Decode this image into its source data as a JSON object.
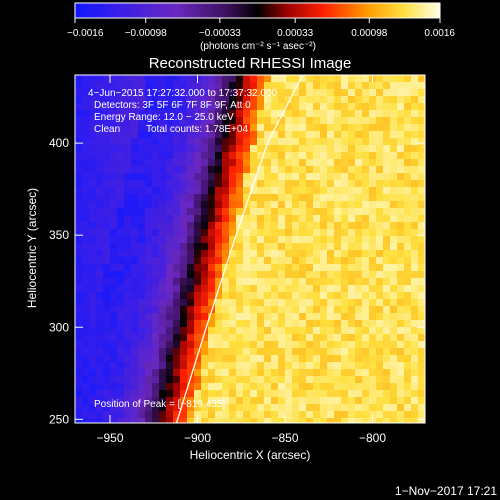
{
  "chart_data": {
    "type": "heatmap",
    "title": "Reconstructed RHESSI Image",
    "xlabel": "Heliocentric X (arcsec)",
    "ylabel": "Heliocentric Y (arcsec)",
    "xlim": [
      -970,
      -770
    ],
    "ylim": [
      248,
      437
    ],
    "x_ticks": [
      {
        "value": -950,
        "label": "−950"
      },
      {
        "value": -900,
        "label": "−900"
      },
      {
        "value": -850,
        "label": "−850"
      },
      {
        "value": -800,
        "label": "−800"
      }
    ],
    "y_ticks": [
      {
        "value": 250,
        "label": "250"
      },
      {
        "value": 300,
        "label": "300"
      },
      {
        "value": 350,
        "label": "350"
      },
      {
        "value": 400,
        "label": "400"
      }
    ],
    "colorbar": {
      "min": -0.0016,
      "max": 0.0016,
      "ticks": [
        {
          "value": -0.0016,
          "label": "−0.0016"
        },
        {
          "value": -0.00098,
          "label": "−0.00098"
        },
        {
          "value": -0.00033,
          "label": "−0.00033"
        },
        {
          "value": 0.00033,
          "label": "0.00033"
        },
        {
          "value": 0.00098,
          "label": "0.00098"
        },
        {
          "value": 0.0016,
          "label": "0.0016"
        }
      ],
      "unit_label": "(photons cm⁻² s⁻¹ asec⁻²)"
    },
    "annotations": {
      "time_range": "4−Jun−2015 17:27:32.000 to 17:37:32.000",
      "detectors": "Detectors: 3F 5F 6F 7F 8F 9F, Att 0",
      "energy_range": "Energy Range: 12.0 − 25.0 keV",
      "method": "Clean",
      "total_counts": "Total counts: 1.78E+04",
      "peak": "Position of Peak = [−819,435]"
    },
    "peak_position": [
      -819,
      435
    ],
    "limb_curve": [
      [
        -912,
        248
      ],
      [
        -895,
        300
      ],
      [
        -878,
        350
      ],
      [
        -860,
        400
      ],
      [
        -840,
        437
      ]
    ],
    "footer": "1−Nov−2017 17:21"
  }
}
